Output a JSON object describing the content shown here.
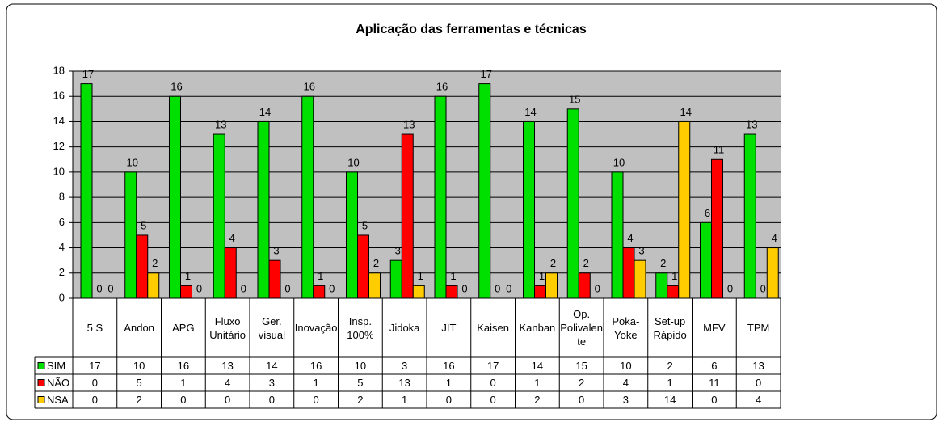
{
  "chart_data": {
    "type": "bar",
    "title": "Aplicação das ferramentas e técnicas",
    "categories": [
      "5 S",
      "Andon",
      "APG",
      "Fluxo Unitário",
      "Ger. visual",
      "Inovação",
      "Insp. 100%",
      "Jidoka",
      "JIT",
      "Kaisen",
      "Kanban",
      "Op. Polivalente",
      "Poka-Yoke",
      "Set-up Rápido",
      "MFV",
      "TPM"
    ],
    "series": [
      {
        "name": "SIM",
        "color": "#00e000",
        "values": [
          17,
          10,
          16,
          13,
          14,
          16,
          10,
          3,
          16,
          17,
          14,
          15,
          10,
          2,
          6,
          13
        ]
      },
      {
        "name": "NÃO",
        "color": "#ff0000",
        "values": [
          0,
          5,
          1,
          4,
          3,
          1,
          5,
          13,
          1,
          0,
          1,
          2,
          4,
          1,
          11,
          0
        ]
      },
      {
        "name": "NSA",
        "color": "#ffcc00",
        "values": [
          0,
          2,
          0,
          0,
          0,
          0,
          2,
          1,
          0,
          0,
          2,
          0,
          3,
          14,
          0,
          4
        ]
      }
    ],
    "ylim": [
      0,
      18
    ],
    "yticks": [
      0,
      2,
      4,
      6,
      8,
      10,
      12,
      14,
      16,
      18
    ],
    "grid": true
  }
}
